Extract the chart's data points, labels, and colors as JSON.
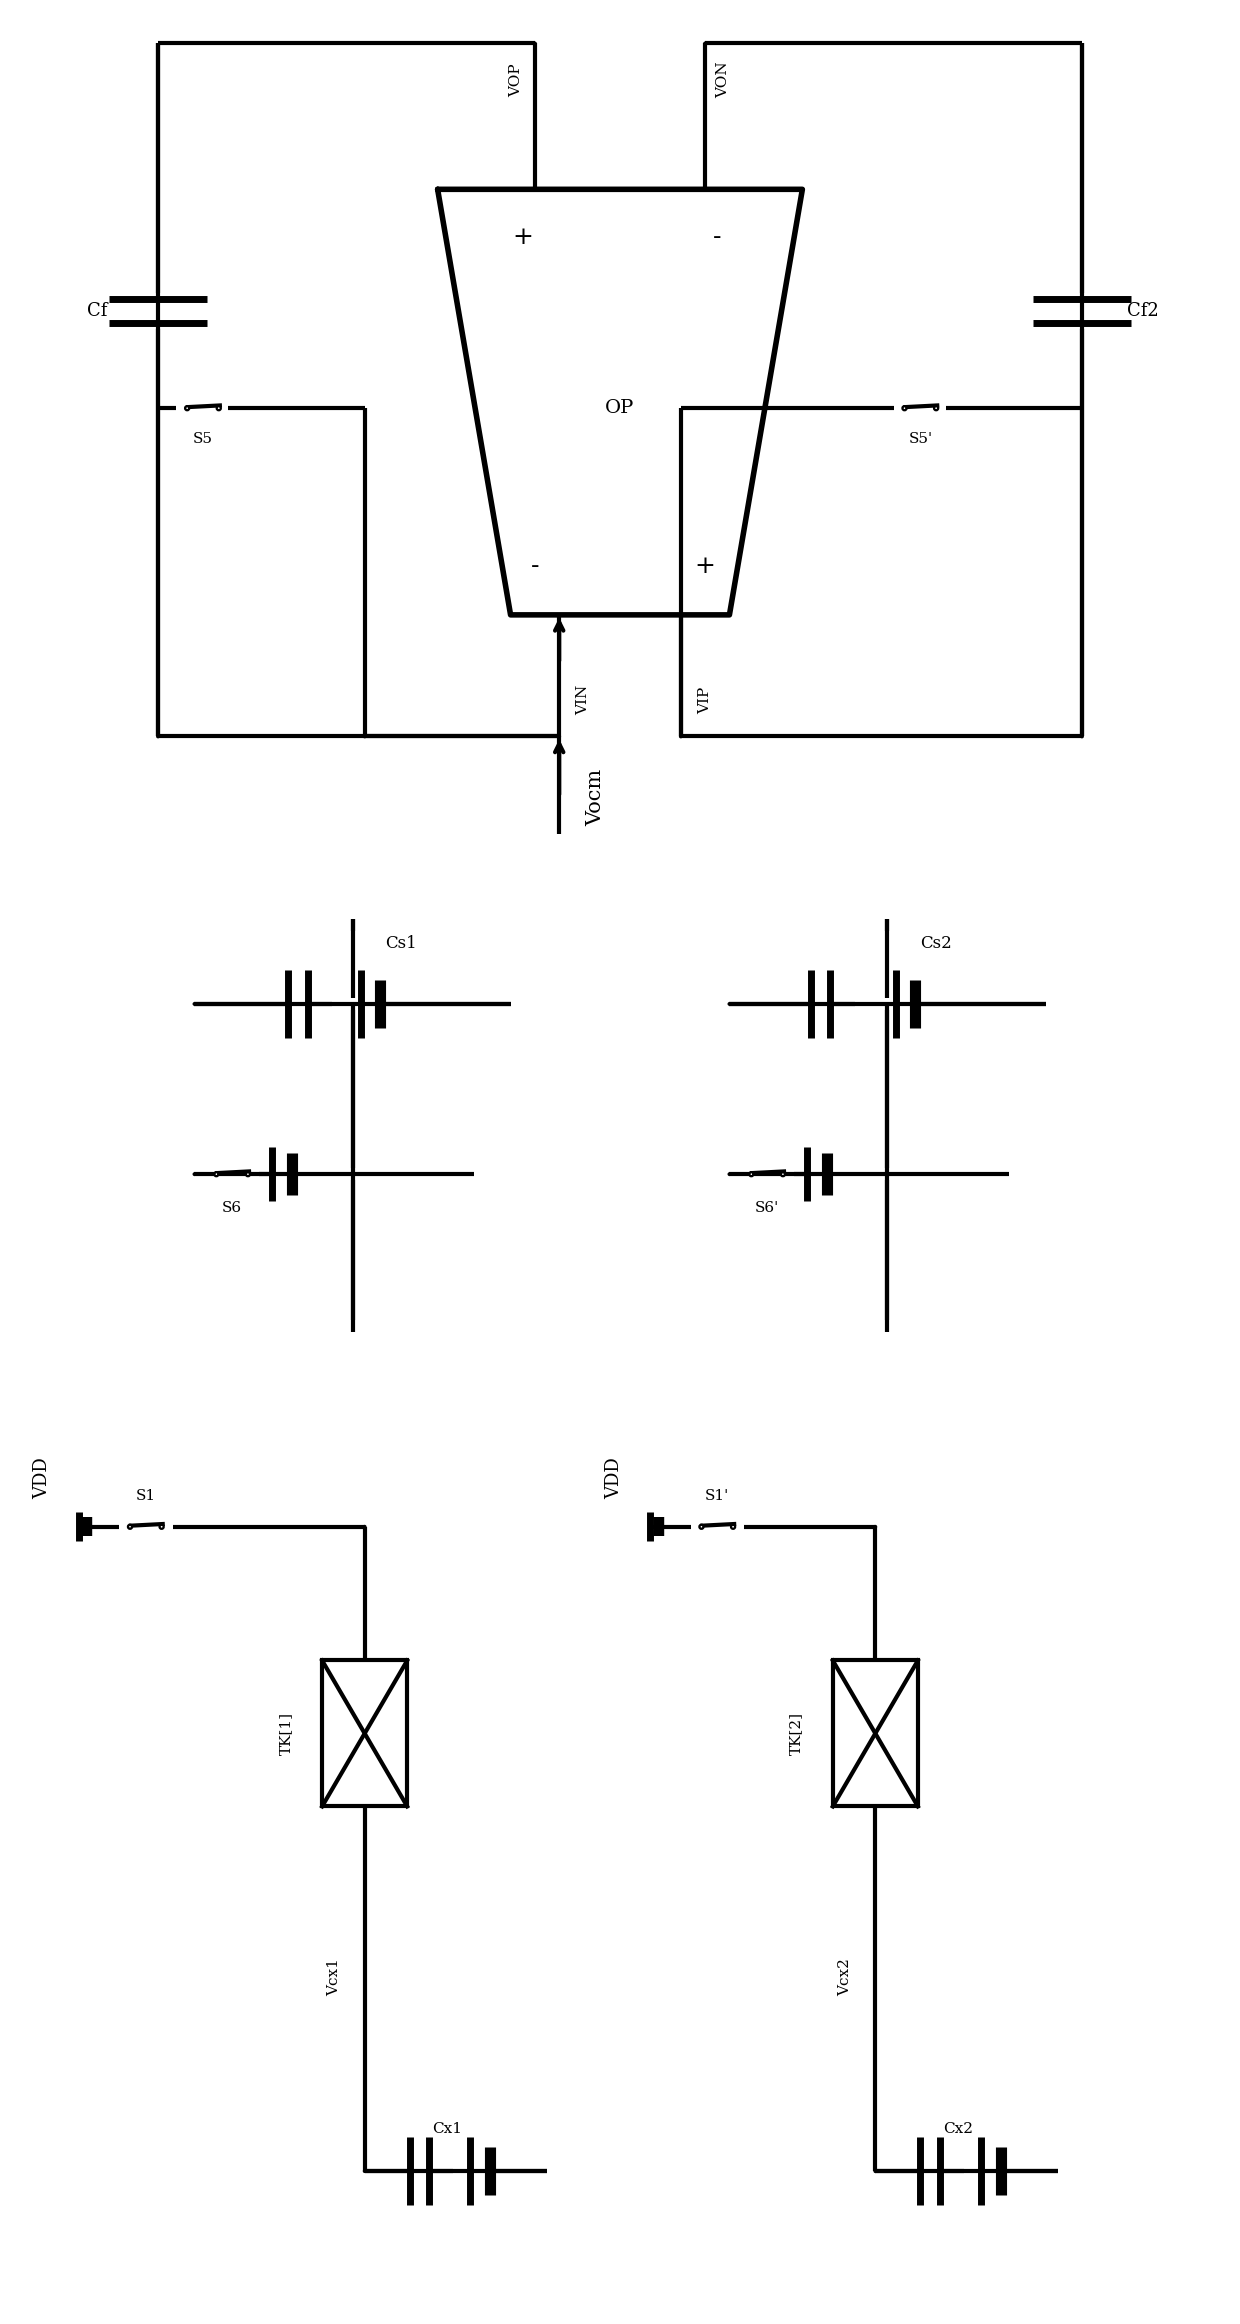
{
  "bg_color": "#ffffff",
  "line_color": "#000000",
  "lw": 3.0,
  "lw_thick": 5.0,
  "dot_r": 0.01,
  "open_r": 0.009,
  "figsize": [
    12.4,
    23.24
  ],
  "dpi": 100,
  "xlim": [
    0,
    10
  ],
  "ylim": [
    0,
    19
  ]
}
